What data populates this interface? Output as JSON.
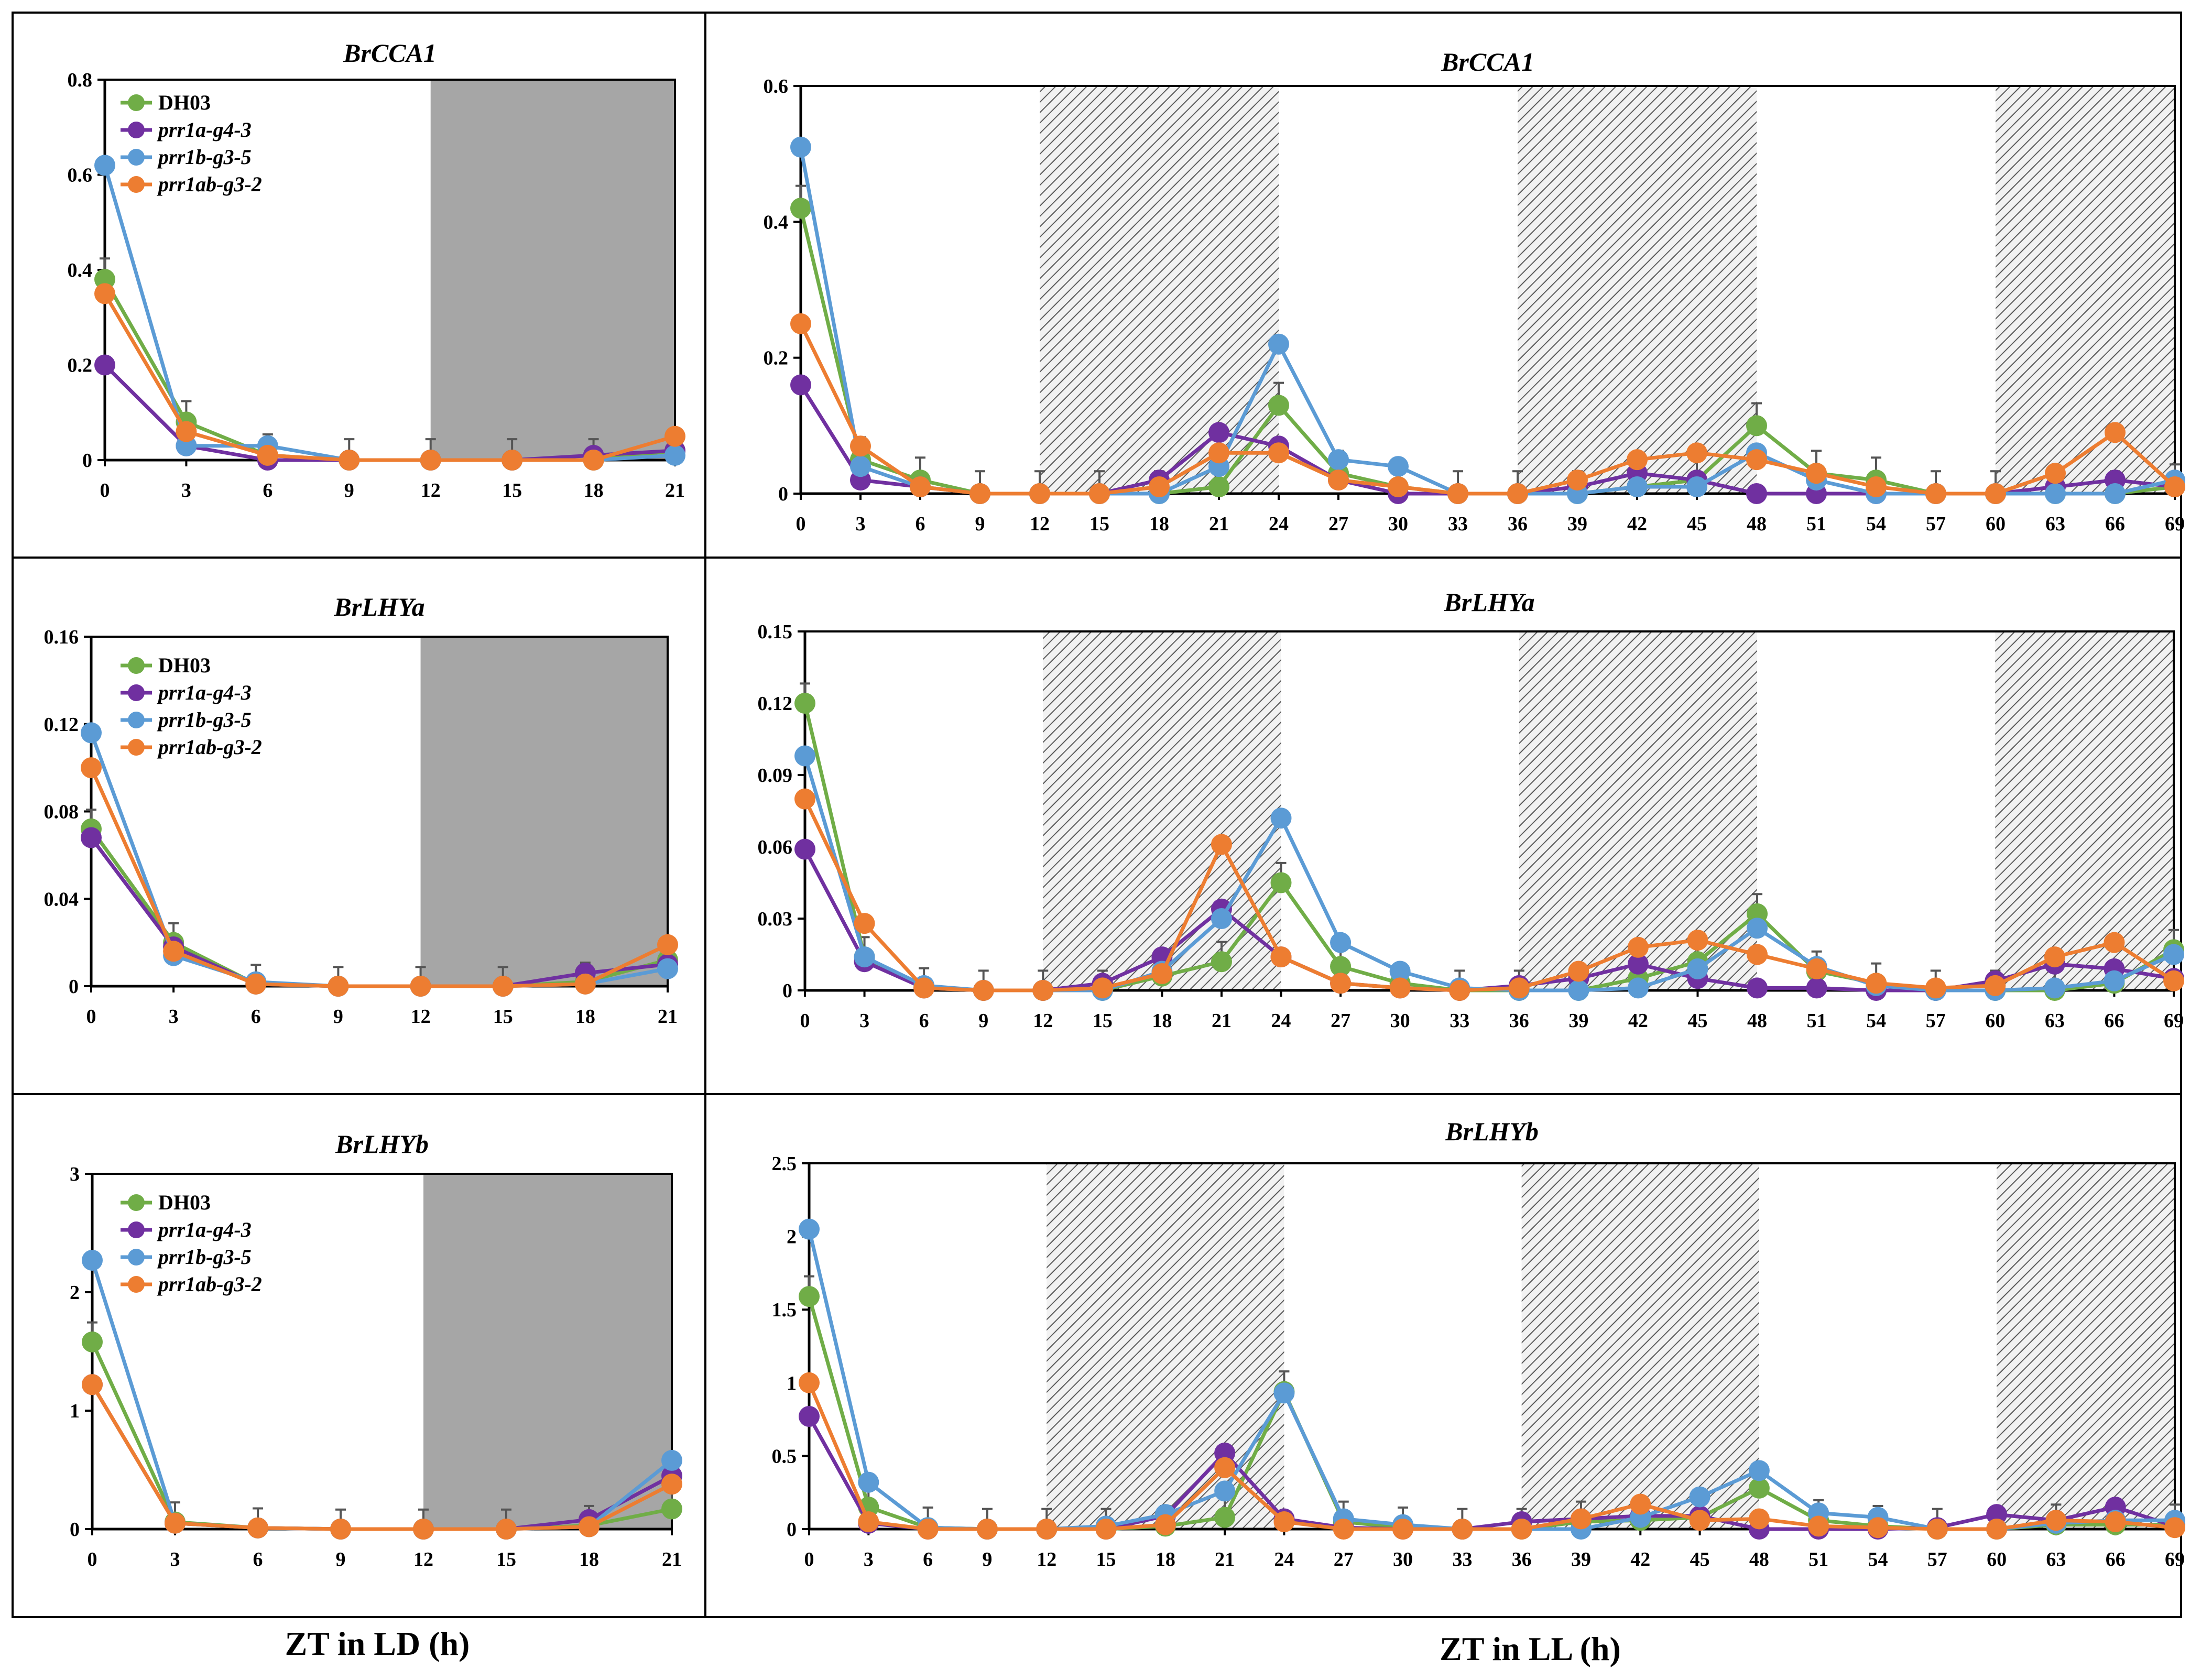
{
  "figure": {
    "xlabel_ld": "ZT in LD (h)",
    "xlabel_ll": "ZT in LL (h)"
  },
  "series_styles": [
    {
      "name": "DH03",
      "color": "#70AD47",
      "italic": false
    },
    {
      "name": "prr1a-g4-3",
      "color": "#7030A0",
      "italic": true
    },
    {
      "name": "prr1b-g3-5",
      "color": "#5B9BD5",
      "italic": true
    },
    {
      "name": "prr1ab-g3-2",
      "color": "#ED7D31",
      "italic": true
    }
  ],
  "chart_data": [
    {
      "id": "ld-brcca1",
      "type": "line",
      "title": "BrCCA1",
      "legend": "top-left",
      "x": [
        0,
        3,
        6,
        9,
        12,
        15,
        18,
        21
      ],
      "xlim": [
        0,
        21
      ],
      "yticks": [
        "0",
        "0.2",
        "0.4",
        "0.6",
        "0.8"
      ],
      "ylim": [
        0,
        0.8
      ],
      "shaded": [
        {
          "from": 12,
          "to": 21,
          "style": "dark"
        }
      ],
      "series": [
        {
          "name": "DH03",
          "values": [
            0.38,
            0.08,
            0.01,
            0,
            0,
            0,
            0,
            0.02
          ]
        },
        {
          "name": "prr1a-g4-3",
          "values": [
            0.2,
            0.03,
            0,
            0,
            0,
            0,
            0.01,
            0.02
          ]
        },
        {
          "name": "prr1b-g3-5",
          "values": [
            0.62,
            0.03,
            0.03,
            0,
            0,
            0,
            0,
            0.01
          ]
        },
        {
          "name": "prr1ab-g3-2",
          "values": [
            0.35,
            0.06,
            0.01,
            0,
            0,
            0,
            0,
            0.05
          ]
        }
      ]
    },
    {
      "id": "ll-brcca1",
      "type": "line",
      "title": "BrCCA1",
      "legend": "none",
      "x": [
        0,
        3,
        6,
        9,
        12,
        15,
        18,
        21,
        24,
        27,
        30,
        33,
        36,
        39,
        42,
        45,
        48,
        51,
        54,
        57,
        60,
        63,
        66,
        69
      ],
      "xlim": [
        0,
        69
      ],
      "yticks": [
        "0",
        "0.2",
        "0.4",
        "0.6"
      ],
      "ylim": [
        0,
        0.6
      ],
      "shaded": [
        {
          "from": 12,
          "to": 24,
          "style": "hatch"
        },
        {
          "from": 36,
          "to": 48,
          "style": "hatch"
        },
        {
          "from": 60,
          "to": 69,
          "style": "hatch"
        }
      ],
      "series": [
        {
          "name": "DH03",
          "values": [
            0.42,
            0.05,
            0.02,
            0,
            0,
            0,
            0,
            0.01,
            0.13,
            0.03,
            0.01,
            0,
            0,
            0,
            0.01,
            0.02,
            0.1,
            0.03,
            0.02,
            0,
            0,
            0,
            0,
            0.01
          ]
        },
        {
          "name": "prr1a-g4-3",
          "values": [
            0.16,
            0.02,
            0.01,
            0,
            0,
            0,
            0.02,
            0.09,
            0.07,
            0.02,
            0,
            0,
            0,
            0.01,
            0.03,
            0.02,
            0,
            0,
            0,
            0,
            0,
            0.01,
            0.02,
            0.01
          ]
        },
        {
          "name": "prr1b-g3-5",
          "values": [
            0.51,
            0.04,
            0.01,
            0,
            0,
            0,
            0,
            0.04,
            0.22,
            0.05,
            0.04,
            0,
            0,
            0,
            0.01,
            0.01,
            0.06,
            0.02,
            0,
            0,
            0,
            0,
            0,
            0.02
          ]
        },
        {
          "name": "prr1ab-g3-2",
          "values": [
            0.25,
            0.07,
            0.01,
            0,
            0,
            0,
            0.01,
            0.06,
            0.06,
            0.02,
            0.01,
            0,
            0,
            0.02,
            0.05,
            0.06,
            0.05,
            0.03,
            0.01,
            0,
            0,
            0.03,
            0.09,
            0.01
          ]
        }
      ]
    },
    {
      "id": "ld-brlhya",
      "type": "line",
      "title": "BrLHYa",
      "legend": "top-left",
      "x": [
        0,
        3,
        6,
        9,
        12,
        15,
        18,
        21
      ],
      "xlim": [
        0,
        21
      ],
      "yticks": [
        "0",
        "0.04",
        "0.08",
        "0.12",
        "0.16"
      ],
      "ylim": [
        0,
        0.16
      ],
      "shaded": [
        {
          "from": 12,
          "to": 21,
          "style": "dark"
        }
      ],
      "series": [
        {
          "name": "DH03",
          "values": [
            0.072,
            0.02,
            0.001,
            0,
            0,
            0,
            0.002,
            0.012
          ]
        },
        {
          "name": "prr1a-g4-3",
          "values": [
            0.068,
            0.018,
            0.001,
            0,
            0,
            0,
            0.006,
            0.01
          ]
        },
        {
          "name": "prr1b-g3-5",
          "values": [
            0.116,
            0.014,
            0.002,
            0,
            0,
            0,
            0.001,
            0.008
          ]
        },
        {
          "name": "prr1ab-g3-2",
          "values": [
            0.1,
            0.016,
            0.001,
            0,
            0,
            0,
            0.001,
            0.019
          ]
        }
      ]
    },
    {
      "id": "ll-brlhya",
      "type": "line",
      "title": "BrLHYa",
      "legend": "none",
      "x": [
        0,
        3,
        6,
        9,
        12,
        15,
        18,
        21,
        24,
        27,
        30,
        33,
        36,
        39,
        42,
        45,
        48,
        51,
        54,
        57,
        60,
        63,
        66,
        69
      ],
      "xlim": [
        0,
        69
      ],
      "yticks": [
        "0",
        "0.03",
        "0.06",
        "0.09",
        "0.12",
        "0.15"
      ],
      "ylim": [
        0,
        0.15
      ],
      "shaded": [
        {
          "from": 12,
          "to": 24,
          "style": "hatch"
        },
        {
          "from": 36,
          "to": 48,
          "style": "hatch"
        },
        {
          "from": 60,
          "to": 69,
          "style": "hatch"
        }
      ],
      "series": [
        {
          "name": "DH03",
          "values": [
            0.12,
            0.014,
            0.001,
            0,
            0,
            0,
            0.006,
            0.012,
            0.045,
            0.01,
            0.003,
            0,
            0,
            0,
            0.005,
            0.012,
            0.032,
            0.008,
            0.003,
            0,
            0,
            0,
            0.003,
            0.017
          ]
        },
        {
          "name": "prr1a-g4-3",
          "values": [
            0.059,
            0.012,
            0.001,
            0,
            0,
            0.003,
            0.014,
            0.034,
            0.014,
            0.003,
            0.001,
            0,
            0.002,
            0.005,
            0.011,
            0.005,
            0.001,
            0.001,
            0,
            0,
            0.004,
            0.011,
            0.009,
            0.005
          ]
        },
        {
          "name": "prr1b-g3-5",
          "values": [
            0.098,
            0.014,
            0.002,
            0,
            0,
            0,
            0.008,
            0.03,
            0.072,
            0.02,
            0.008,
            0.001,
            0,
            0,
            0.001,
            0.009,
            0.026,
            0.01,
            0.002,
            0,
            0,
            0.001,
            0.004,
            0.015
          ]
        },
        {
          "name": "prr1ab-g3-2",
          "values": [
            0.08,
            0.028,
            0.001,
            0,
            0,
            0.001,
            0.007,
            0.061,
            0.014,
            0.003,
            0.001,
            0,
            0.001,
            0.008,
            0.018,
            0.021,
            0.015,
            0.009,
            0.003,
            0.001,
            0.002,
            0.014,
            0.02,
            0.004
          ]
        }
      ]
    },
    {
      "id": "ld-brlhyb",
      "type": "line",
      "title": "BrLHYb",
      "legend": "top-left",
      "x": [
        0,
        3,
        6,
        9,
        12,
        15,
        18,
        21
      ],
      "xlim": [
        0,
        21
      ],
      "yticks": [
        "0",
        "1",
        "2",
        "3"
      ],
      "ylim": [
        0,
        3
      ],
      "shaded": [
        {
          "from": 12,
          "to": 21,
          "style": "dark"
        }
      ],
      "series": [
        {
          "name": "DH03",
          "values": [
            1.58,
            0.06,
            0.01,
            0,
            0,
            0,
            0.03,
            0.17
          ]
        },
        {
          "name": "prr1a-g4-3",
          "values": [
            1.22,
            0.05,
            0.01,
            0,
            0,
            0,
            0.08,
            0.45
          ]
        },
        {
          "name": "prr1b-g3-5",
          "values": [
            2.27,
            0.05,
            0.01,
            0,
            0,
            0,
            0.02,
            0.58
          ]
        },
        {
          "name": "prr1ab-g3-2",
          "values": [
            1.22,
            0.05,
            0.01,
            0,
            0,
            0,
            0.02,
            0.38
          ]
        }
      ]
    },
    {
      "id": "ll-brlhyb",
      "type": "line",
      "title": "BrLHYb",
      "legend": "none",
      "x": [
        0,
        3,
        6,
        9,
        12,
        15,
        18,
        21,
        24,
        27,
        30,
        33,
        36,
        39,
        42,
        45,
        48,
        51,
        54,
        57,
        60,
        63,
        66,
        69
      ],
      "xlim": [
        0,
        69
      ],
      "yticks": [
        "0",
        "0.5",
        "1",
        "1.5",
        "2",
        "2.5"
      ],
      "ylim": [
        0,
        2.5
      ],
      "shaded": [
        {
          "from": 12,
          "to": 24,
          "style": "hatch"
        },
        {
          "from": 36,
          "to": 48,
          "style": "hatch"
        },
        {
          "from": 60,
          "to": 69,
          "style": "hatch"
        }
      ],
      "series": [
        {
          "name": "DH03",
          "values": [
            1.59,
            0.15,
            0.01,
            0,
            0,
            0,
            0.02,
            0.08,
            0.94,
            0.05,
            0.01,
            0,
            0,
            0.05,
            0.06,
            0.08,
            0.28,
            0.06,
            0.02,
            0,
            0,
            0.03,
            0.03,
            0.03
          ]
        },
        {
          "name": "prr1a-g4-3",
          "values": [
            0.77,
            0.04,
            0,
            0,
            0,
            0,
            0.09,
            0.52,
            0.07,
            0.01,
            0,
            0,
            0.05,
            0.07,
            0.09,
            0.09,
            0,
            0,
            0,
            0.01,
            0.1,
            0.06,
            0.15,
            0.02
          ]
        },
        {
          "name": "prr1b-g3-5",
          "values": [
            2.05,
            0.32,
            0.01,
            0,
            0,
            0.02,
            0.1,
            0.26,
            0.93,
            0.07,
            0.03,
            0,
            0,
            0,
            0.08,
            0.22,
            0.4,
            0.11,
            0.08,
            0,
            0,
            0.04,
            0.06,
            0.06
          ]
        },
        {
          "name": "prr1ab-g3-2",
          "values": [
            1.0,
            0.05,
            0,
            0,
            0,
            0,
            0.03,
            0.42,
            0.05,
            0,
            0,
            0,
            0,
            0.07,
            0.17,
            0.06,
            0.07,
            0.02,
            0.01,
            0,
            0,
            0.06,
            0.05,
            0.01
          ]
        }
      ]
    }
  ]
}
